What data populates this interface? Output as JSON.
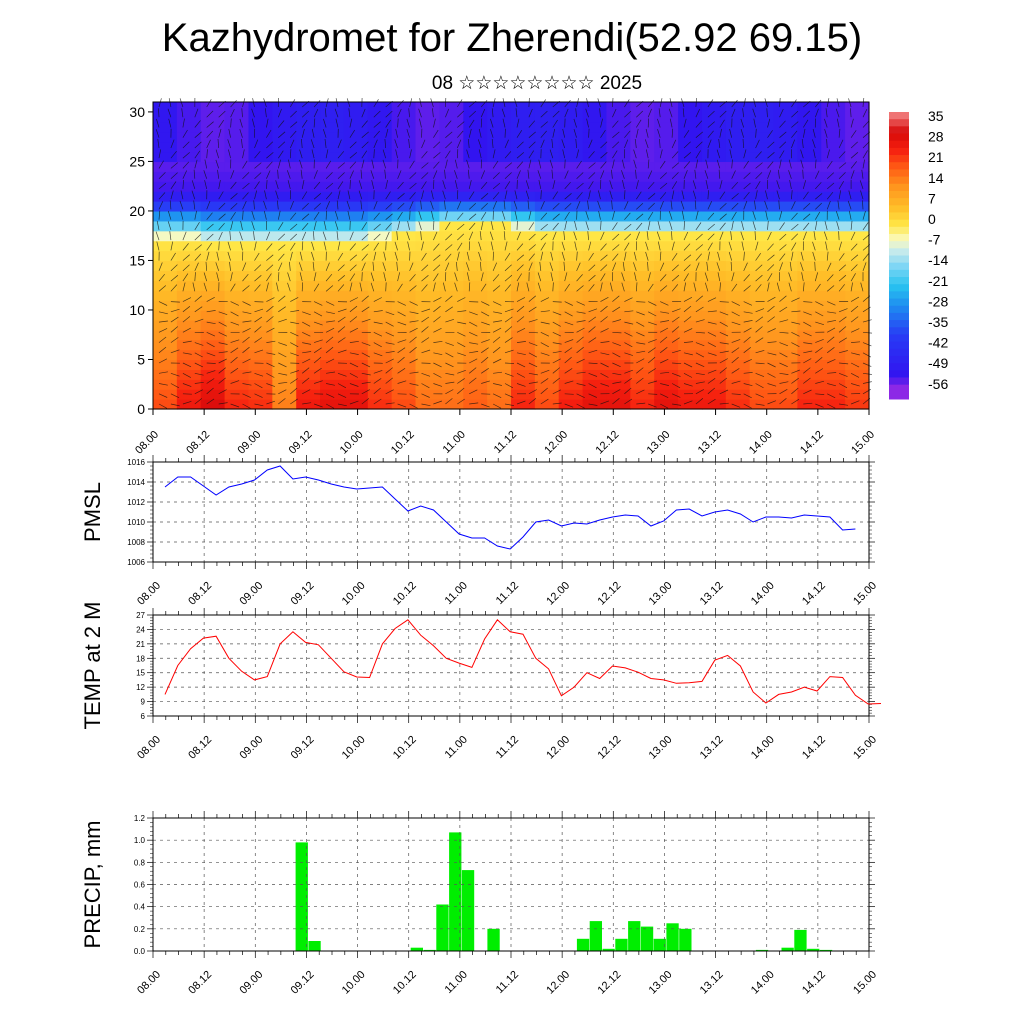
{
  "title": "Kazhydromet for Zherendi(52.92 69.15)",
  "subtitle": "08 ☆☆☆☆☆☆☆☆ 2025",
  "colorbar": {
    "labels": [
      "35",
      "28",
      "21",
      "14",
      "7",
      "0",
      "-7",
      "-14",
      "-21",
      "-28",
      "-35",
      "-42",
      "-49",
      "-56"
    ]
  },
  "chart_data": [
    {
      "type": "heatmap",
      "name": "temperature-wind-cross-section",
      "y_ticks": [
        "0",
        "5",
        "10",
        "15",
        "20",
        "25",
        "30"
      ],
      "y_values": [
        0,
        5,
        10,
        15,
        20,
        25,
        30
      ],
      "ylim": [
        0,
        31
      ],
      "x_ticks": [
        "08.00",
        "08.12",
        "09.00",
        "09.12",
        "10.00",
        "10.12",
        "11.00",
        "11.12",
        "12.00",
        "12.12",
        "13.00",
        "13.12",
        "14.00",
        "14.12",
        "15.00"
      ],
      "xlim": [
        0,
        14
      ],
      "colorbar_range": [
        -56,
        35
      ],
      "surface_temps": [
        18,
        24,
        28,
        22,
        21,
        12,
        24,
        26,
        26,
        21,
        18,
        14,
        14,
        16,
        14,
        22,
        18,
        23,
        26,
        26,
        22,
        26,
        24,
        24,
        21,
        18,
        18,
        22,
        22,
        20
      ],
      "isotherm_zero_level_km": [
        17,
        17,
        16.5,
        16.5,
        16.5,
        16.5,
        16.5,
        16.5,
        16.5,
        17,
        17.5,
        18,
        18.5,
        18.5,
        18.5,
        18,
        17.5,
        17.5,
        17.5,
        17.5,
        17.5,
        17.5,
        17.5,
        17.5,
        17.5,
        17.5,
        17.5,
        17.5,
        17.5,
        17.5
      ],
      "wind_barbs": true
    },
    {
      "type": "line",
      "ylabel": "PMSL",
      "y_ticks": [
        "1006",
        "1008",
        "1010",
        "1012",
        "1014",
        "1016"
      ],
      "ylim": [
        1006,
        1016
      ],
      "x_ticks": [
        "08.00",
        "08.12",
        "09.00",
        "09.12",
        "10.00",
        "10.12",
        "11.00",
        "11.12",
        "12.00",
        "12.12",
        "13.00",
        "13.12",
        "14.00",
        "14.12",
        "15.00"
      ],
      "x_step_hours": 3,
      "series": [
        {
          "color": "#0000ff",
          "values": [
            1013.5,
            1014.5,
            1014.5,
            1013.6,
            1012.7,
            1013.5,
            1013.8,
            1014.2,
            1015.2,
            1015.6,
            1014.3,
            1014.5,
            1014.2,
            1013.8,
            1013.5,
            1013.3,
            1013.4,
            1013.5,
            1012.3,
            1011.1,
            1011.6,
            1011.2,
            1010,
            1008.8,
            1008.4,
            1008.4,
            1007.6,
            1007.3,
            1008.5,
            1010,
            1010.2,
            1009.6,
            1009.9,
            1009.8,
            1010.2,
            1010.5,
            1010.7,
            1010.6,
            1009.6,
            1010.1,
            1011.2,
            1011.3,
            1010.6,
            1011,
            1011.2,
            1010.8,
            1010,
            1010.5,
            1010.5,
            1010.4,
            1010.7,
            1010.6,
            1010.5,
            1009.2,
            1009.3
          ]
        }
      ]
    },
    {
      "type": "line",
      "ylabel": "TEMP at 2 M",
      "y_ticks": [
        "6",
        "9",
        "12",
        "15",
        "18",
        "21",
        "24",
        "27"
      ],
      "ylim": [
        6,
        27
      ],
      "x_ticks": [
        "08.00",
        "08.12",
        "09.00",
        "09.12",
        "10.00",
        "10.12",
        "11.00",
        "11.12",
        "12.00",
        "12.12",
        "13.00",
        "13.12",
        "14.00",
        "14.12",
        "15.00"
      ],
      "x_step_hours": 3,
      "series": [
        {
          "color": "#ff0000",
          "values": [
            10.5,
            16.5,
            20,
            22.2,
            22.6,
            18,
            15.3,
            13.5,
            14.2,
            21,
            23.5,
            21.3,
            20.8,
            18,
            15.2,
            14.1,
            14,
            21,
            24.2,
            26,
            22.8,
            20.6,
            18,
            17,
            16.1,
            22,
            26,
            23.5,
            23,
            18,
            15.8,
            10.2,
            12,
            15,
            13.8,
            16.4,
            16,
            15.1,
            13.8,
            13.5,
            12.8,
            12.9,
            13.2,
            17.6,
            18.6,
            16.4,
            11,
            8.7,
            10.5,
            11,
            12,
            11.2,
            14.2,
            14,
            10.3,
            8.5,
            8.6
          ]
        }
      ]
    },
    {
      "type": "bar",
      "ylabel": "PRECIP, mm",
      "y_ticks": [
        "0.0",
        "0.2",
        "0.4",
        "0.6",
        "0.8",
        "1.0",
        "1.2"
      ],
      "ylim": [
        0,
        1.2
      ],
      "x_ticks": [
        "08.00",
        "08.12",
        "09.00",
        "09.12",
        "10.00",
        "10.12",
        "11.00",
        "11.12",
        "12.00",
        "12.12",
        "13.00",
        "13.12",
        "14.00",
        "14.12",
        "15.00"
      ],
      "x_step_hours": 3,
      "color": "#00ee00",
      "values": [
        0,
        0,
        0,
        0,
        0,
        0,
        0,
        0,
        0,
        0,
        0,
        0.98,
        0.09,
        0,
        0,
        0,
        0,
        0,
        0,
        0,
        0.03,
        0.01,
        0.42,
        1.07,
        0.73,
        0,
        0.2,
        0,
        0,
        0,
        0,
        0,
        0,
        0.11,
        0.27,
        0.02,
        0.11,
        0.27,
        0.22,
        0.11,
        0.25,
        0.2,
        0,
        0,
        0,
        0,
        0,
        0.01,
        0,
        0.03,
        0.19,
        0.02,
        0.01,
        0,
        0,
        0,
        0
      ]
    }
  ]
}
